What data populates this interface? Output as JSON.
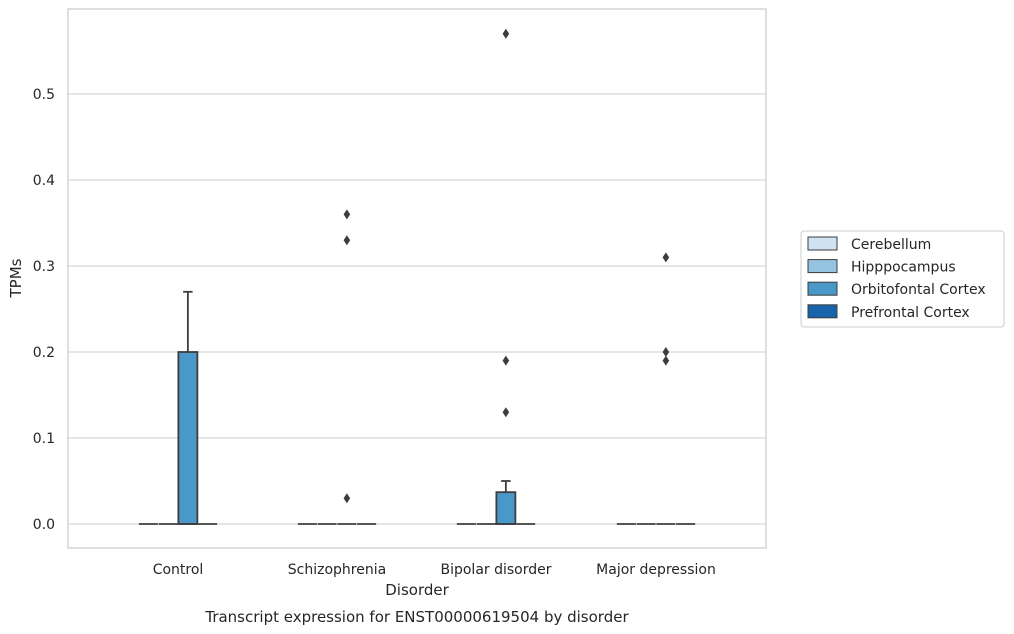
{
  "chart_data": {
    "type": "box",
    "title": "Transcript expression for ENST00000619504 by disorder",
    "xlabel": "Disorder",
    "ylabel": "TPMs",
    "ylim": [
      -0.028,
      0.6
    ],
    "yticks": [
      0.0,
      0.1,
      0.2,
      0.3,
      0.4,
      0.5
    ],
    "ytick_labels": [
      "0.0",
      "0.1",
      "0.2",
      "0.3",
      "0.4",
      "0.5"
    ],
    "grid": "horizontal",
    "legend_position": "right",
    "categories": [
      "Control",
      "Schizophrenia",
      "Bipolar disorder",
      "Major depression"
    ],
    "series": [
      {
        "name": "Cerebellum",
        "color": "#d0e1f2",
        "boxes": [
          {
            "category": "Control",
            "q1": 0,
            "median": 0,
            "q3": 0,
            "whisker_low": 0,
            "whisker_high": 0,
            "outliers": []
          },
          {
            "category": "Schizophrenia",
            "q1": 0,
            "median": 0,
            "q3": 0,
            "whisker_low": 0,
            "whisker_high": 0,
            "outliers": []
          },
          {
            "category": "Bipolar disorder",
            "q1": 0,
            "median": 0,
            "q3": 0,
            "whisker_low": 0,
            "whisker_high": 0,
            "outliers": []
          },
          {
            "category": "Major depression",
            "q1": 0,
            "median": 0,
            "q3": 0,
            "whisker_low": 0,
            "whisker_high": 0,
            "outliers": []
          }
        ]
      },
      {
        "name": "Hipppocampus",
        "color": "#94c4df",
        "boxes": [
          {
            "category": "Control",
            "q1": 0,
            "median": 0,
            "q3": 0,
            "whisker_low": 0,
            "whisker_high": 0,
            "outliers": []
          },
          {
            "category": "Schizophrenia",
            "q1": 0,
            "median": 0,
            "q3": 0,
            "whisker_low": 0,
            "whisker_high": 0,
            "outliers": []
          },
          {
            "category": "Bipolar disorder",
            "q1": 0,
            "median": 0,
            "q3": 0,
            "whisker_low": 0,
            "whisker_high": 0,
            "outliers": []
          },
          {
            "category": "Major depression",
            "q1": 0,
            "median": 0,
            "q3": 0,
            "whisker_low": 0,
            "whisker_high": 0,
            "outliers": []
          }
        ]
      },
      {
        "name": "Orbitofontal Cortex",
        "color": "#4a98c9",
        "boxes": [
          {
            "category": "Control",
            "q1": 0,
            "median": 0,
            "q3": 0.2,
            "whisker_low": 0,
            "whisker_high": 0.27,
            "outliers": []
          },
          {
            "category": "Schizophrenia",
            "q1": 0,
            "median": 0,
            "q3": 0,
            "whisker_low": 0,
            "whisker_high": 0,
            "outliers": [
              0.36,
              0.33,
              0.03
            ]
          },
          {
            "category": "Bipolar disorder",
            "q1": 0,
            "median": 0,
            "q3": 0.037,
            "whisker_low": 0,
            "whisker_high": 0.05,
            "outliers": [
              0.57,
              0.19,
              0.13
            ]
          },
          {
            "category": "Major depression",
            "q1": 0,
            "median": 0,
            "q3": 0,
            "whisker_low": 0,
            "whisker_high": 0,
            "outliers": [
              0.31,
              0.2,
              0.19
            ]
          }
        ]
      },
      {
        "name": "Prefrontal Cortex",
        "color": "#1764ab",
        "boxes": [
          {
            "category": "Control",
            "q1": 0,
            "median": 0,
            "q3": 0,
            "whisker_low": 0,
            "whisker_high": 0,
            "outliers": []
          },
          {
            "category": "Schizophrenia",
            "q1": 0,
            "median": 0,
            "q3": 0,
            "whisker_low": 0,
            "whisker_high": 0,
            "outliers": []
          },
          {
            "category": "Bipolar disorder",
            "q1": 0,
            "median": 0,
            "q3": 0,
            "whisker_low": 0,
            "whisker_high": 0,
            "outliers": []
          },
          {
            "category": "Major depression",
            "q1": 0,
            "median": 0,
            "q3": 0,
            "whisker_low": 0,
            "whisker_high": 0,
            "outliers": []
          }
        ]
      }
    ]
  }
}
